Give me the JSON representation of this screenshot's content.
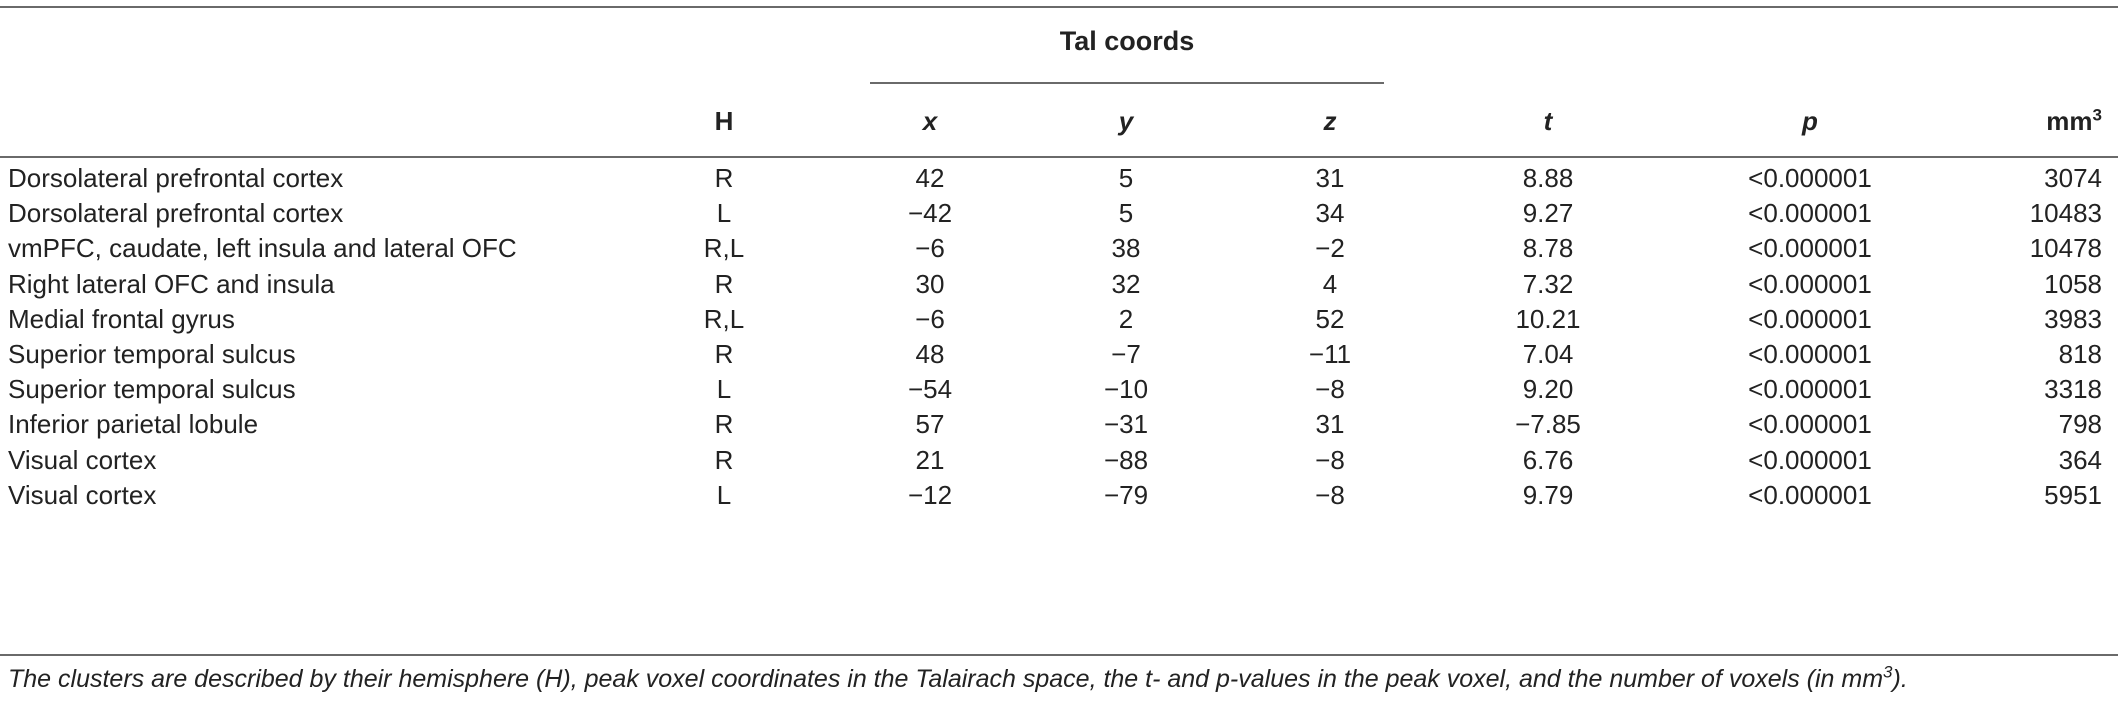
{
  "table": {
    "group_header": "Tal coords",
    "columns": {
      "h": "H",
      "x": "x",
      "y": "y",
      "z": "z",
      "t": "t",
      "p": "p",
      "mm_base": "mm",
      "mm_sup": "3"
    },
    "rows": [
      {
        "region": "Dorsolateral prefrontal cortex",
        "h": "R",
        "x": "42",
        "y": "5",
        "z": "31",
        "t": "8.88",
        "p": "<0.000001",
        "mm3": "3074"
      },
      {
        "region": "Dorsolateral prefrontal cortex",
        "h": "L",
        "x": "−42",
        "y": "5",
        "z": "34",
        "t": "9.27",
        "p": "<0.000001",
        "mm3": "10483"
      },
      {
        "region": "vmPFC, caudate, left insula and lateral OFC",
        "h": "R,L",
        "x": "−6",
        "y": "38",
        "z": "−2",
        "t": "8.78",
        "p": "<0.000001",
        "mm3": "10478"
      },
      {
        "region": "Right lateral OFC and insula",
        "h": "R",
        "x": "30",
        "y": "32",
        "z": "4",
        "t": "7.32",
        "p": "<0.000001",
        "mm3": "1058"
      },
      {
        "region": "Medial frontal gyrus",
        "h": "R,L",
        "x": "−6",
        "y": "2",
        "z": "52",
        "t": "10.21",
        "p": "<0.000001",
        "mm3": "3983"
      },
      {
        "region": "Superior temporal sulcus",
        "h": "R",
        "x": "48",
        "y": "−7",
        "z": "−11",
        "t": "7.04",
        "p": "<0.000001",
        "mm3": "818"
      },
      {
        "region": "Superior temporal sulcus",
        "h": "L",
        "x": "−54",
        "y": "−10",
        "z": "−8",
        "t": "9.20",
        "p": "<0.000001",
        "mm3": "3318"
      },
      {
        "region": "Inferior parietal lobule",
        "h": "R",
        "x": "57",
        "y": "−31",
        "z": "31",
        "t": "−7.85",
        "p": "<0.000001",
        "mm3": "798"
      },
      {
        "region": "Visual cortex",
        "h": "R",
        "x": "21",
        "y": "−88",
        "z": "−8",
        "t": "6.76",
        "p": "<0.000001",
        "mm3": "364"
      },
      {
        "region": "Visual cortex",
        "h": "L",
        "x": "−12",
        "y": "−79",
        "z": "−8",
        "t": "9.79",
        "p": "<0.000001",
        "mm3": "5951"
      }
    ]
  },
  "caption": {
    "text": "The clusters are described by their hemisphere (H), peak voxel coordinates in the Talairach space, the t- and p-values in the peak voxel, and the number of voxels (in mm",
    "sup": "3",
    "end": ")."
  }
}
